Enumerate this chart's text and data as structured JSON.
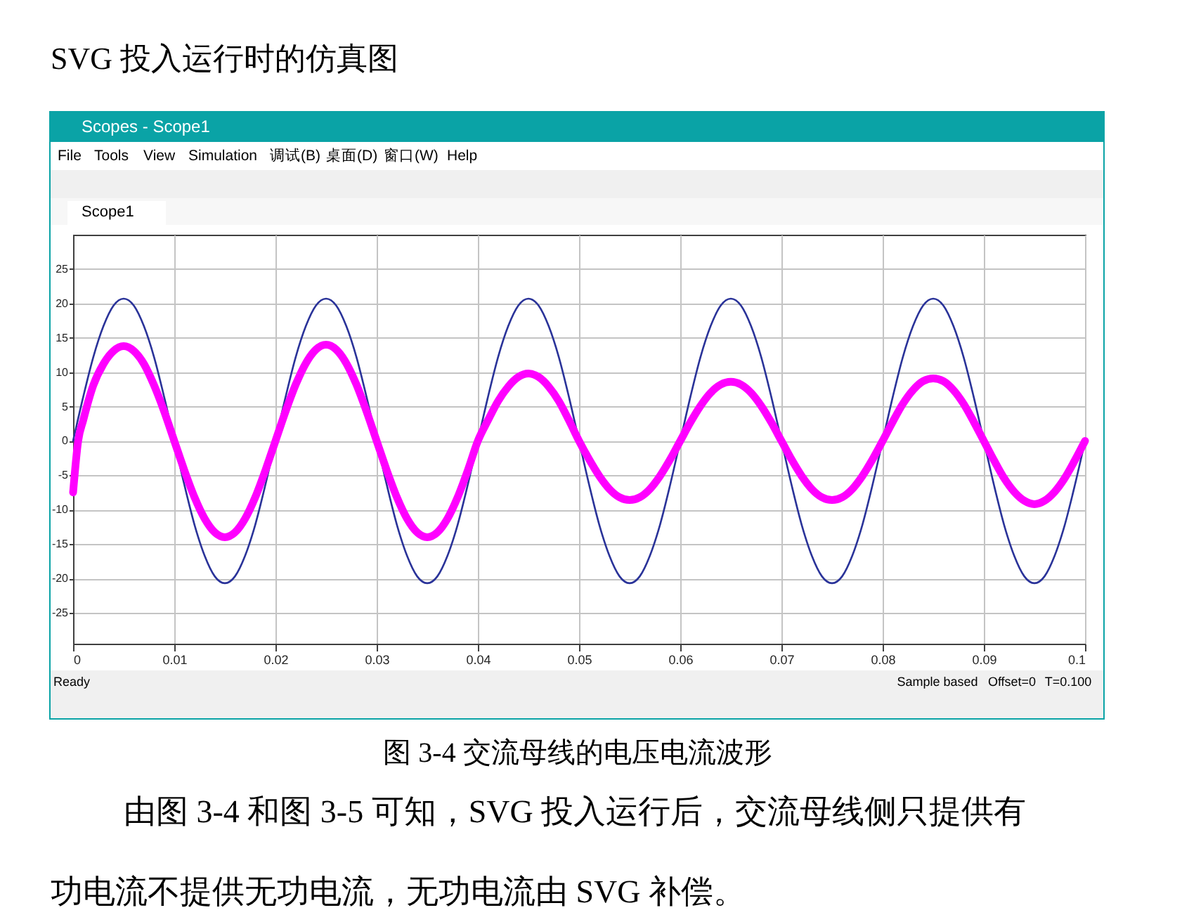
{
  "chart_data": {
    "type": "line",
    "title": "SVG 投入运行时的仿真图",
    "annotations": [
      "Scopes - Scope1",
      "File",
      "Tools",
      "View",
      "Simulation",
      "调试(B)",
      "桌面(D)",
      "窗口(W)",
      "Help",
      "Scope1",
      "Ready",
      "Sample based",
      "Offset=0",
      "T=0.100",
      "图 3-4 交流母线的电压电流波形",
      "由图 3-4 和图 3-5 可知，SVG 投入运行后，交流母线侧只提供有",
      "功电流不提供无功电流，无功电流由 SVG 补偿。"
    ],
    "xlim": [
      0,
      0.1
    ],
    "xticks": [
      0,
      0.01,
      0.02,
      0.03,
      0.04,
      0.05,
      0.06,
      0.07,
      0.08,
      0.09,
      0.1
    ],
    "ylim": [
      -29.5,
      30
    ],
    "yticks": [
      -25,
      -20,
      -15,
      -10,
      -5,
      0,
      5,
      10,
      15,
      20,
      25
    ],
    "grid": true,
    "series": [
      {
        "color": "#2a3399",
        "x": [
          0,
          0.001,
          0.002,
          0.003,
          0.004,
          0.005,
          0.006,
          0.007,
          0.008,
          0.009,
          0.01,
          0.011,
          0.012,
          0.013,
          0.014,
          0.015,
          0.016,
          0.017,
          0.018,
          0.019,
          0.02,
          0.021,
          0.022,
          0.023,
          0.024,
          0.025,
          0.026,
          0.027,
          0.028,
          0.029,
          0.03,
          0.031,
          0.032,
          0.033,
          0.034,
          0.035,
          0.036,
          0.037,
          0.038,
          0.039,
          0.04,
          0.041,
          0.042,
          0.043,
          0.044,
          0.045,
          0.046,
          0.047,
          0.048,
          0.049,
          0.05,
          0.051,
          0.052,
          0.053,
          0.054,
          0.055,
          0.056,
          0.057,
          0.058,
          0.059,
          0.06,
          0.061,
          0.062,
          0.063,
          0.064,
          0.065,
          0.066,
          0.067,
          0.068,
          0.069,
          0.07,
          0.071,
          0.072,
          0.073,
          0.074,
          0.075,
          0.076,
          0.077,
          0.078,
          0.079,
          0.08,
          0.081,
          0.082,
          0.083,
          0.084,
          0.085,
          0.086,
          0.087,
          0.088,
          0.089,
          0.09,
          0.091,
          0.092,
          0.093,
          0.094,
          0.095,
          0.096,
          0.097,
          0.098,
          0.099,
          0.1
        ],
        "values": [
          0,
          6.4,
          12.2,
          16.7,
          19.7,
          20.7,
          19.7,
          16.7,
          12.2,
          6.4,
          0,
          -6.4,
          -12.2,
          -16.7,
          -19.7,
          -20.7,
          -19.7,
          -16.7,
          -12.2,
          -6.4,
          0,
          6.4,
          12.2,
          16.7,
          19.7,
          20.7,
          19.7,
          16.7,
          12.2,
          6.4,
          0,
          -6.4,
          -12.2,
          -16.7,
          -19.7,
          -20.7,
          -19.7,
          -16.7,
          -12.2,
          -6.4,
          0,
          6.4,
          12.2,
          16.7,
          19.7,
          20.7,
          19.7,
          16.7,
          12.2,
          6.4,
          0,
          -6.4,
          -12.2,
          -16.7,
          -19.7,
          -20.7,
          -19.7,
          -16.7,
          -12.2,
          -6.4,
          0,
          6.4,
          12.2,
          16.7,
          19.7,
          20.7,
          19.7,
          16.7,
          12.2,
          6.4,
          0,
          -6.4,
          -12.2,
          -16.7,
          -19.7,
          -20.7,
          -19.7,
          -16.7,
          -12.2,
          -6.4,
          0,
          6.4,
          12.2,
          16.7,
          19.7,
          20.7,
          19.7,
          16.7,
          12.2,
          6.4,
          0,
          -6.4,
          -12.2,
          -16.7,
          -19.7,
          -20.7,
          -19.7,
          -16.7,
          -12.2,
          -6.4,
          0
        ]
      },
      {
        "color": "#ff00ff",
        "x": [
          0,
          0.0005,
          0.001,
          0.002,
          0.003,
          0.004,
          0.005,
          0.006,
          0.007,
          0.008,
          0.009,
          0.01,
          0.011,
          0.012,
          0.013,
          0.014,
          0.015,
          0.016,
          0.017,
          0.018,
          0.019,
          0.02,
          0.021,
          0.022,
          0.023,
          0.024,
          0.025,
          0.026,
          0.027,
          0.028,
          0.029,
          0.03,
          0.031,
          0.032,
          0.033,
          0.034,
          0.035,
          0.036,
          0.037,
          0.038,
          0.039,
          0.04,
          0.041,
          0.042,
          0.043,
          0.044,
          0.045,
          0.046,
          0.047,
          0.048,
          0.049,
          0.05,
          0.051,
          0.052,
          0.053,
          0.054,
          0.055,
          0.056,
          0.057,
          0.058,
          0.059,
          0.06,
          0.061,
          0.062,
          0.063,
          0.064,
          0.065,
          0.066,
          0.067,
          0.068,
          0.069,
          0.07,
          0.071,
          0.072,
          0.073,
          0.074,
          0.075,
          0.076,
          0.077,
          0.078,
          0.079,
          0.08,
          0.081,
          0.082,
          0.083,
          0.084,
          0.085,
          0.086,
          0.087,
          0.088,
          0.089,
          0.09,
          0.091,
          0.092,
          0.093,
          0.094,
          0.095,
          0.096,
          0.097,
          0.098,
          0.099,
          0.1
        ],
        "values": [
          -7.5,
          0,
          3.0,
          8.1,
          11.2,
          13.1,
          13.8,
          13.1,
          11.2,
          8.1,
          4.3,
          0,
          -4.3,
          -8.2,
          -11.3,
          -13.3,
          -14,
          -13.3,
          -11.3,
          -8.2,
          -4.3,
          0,
          4.3,
          8.2,
          11.3,
          13.3,
          14,
          13.3,
          11.3,
          8.2,
          4.3,
          0,
          -4.3,
          -8.2,
          -11.3,
          -13.3,
          -14,
          -13.3,
          -11.3,
          -8.2,
          -4.3,
          0,
          3.0,
          5.8,
          7.9,
          9.3,
          9.8,
          9.3,
          7.9,
          5.8,
          3.0,
          0,
          -2.7,
          -5.1,
          -7.0,
          -8.2,
          -8.6,
          -8.2,
          -7.0,
          -5.1,
          -2.7,
          0,
          2.7,
          5.1,
          7.0,
          8.2,
          8.6,
          8.2,
          7.0,
          5.1,
          2.7,
          0,
          -2.7,
          -5.1,
          -7.0,
          -8.2,
          -8.6,
          -8.2,
          -7.0,
          -5.1,
          -2.7,
          0,
          2.8,
          5.4,
          7.4,
          8.7,
          9.1,
          8.7,
          7.4,
          5.4,
          2.8,
          0,
          -2.8,
          -5.4,
          -7.4,
          -8.7,
          -9.2,
          -8.7,
          -7.4,
          -5.4,
          -2.8,
          0
        ]
      }
    ]
  }
}
